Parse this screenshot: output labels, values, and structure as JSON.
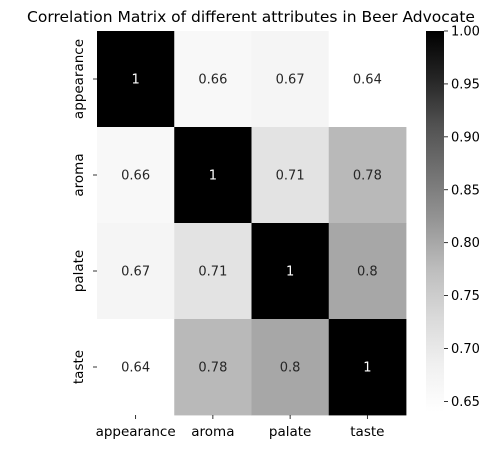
{
  "chart_data": {
    "type": "heatmap",
    "title": "Correlation Matrix of different attributes in Beer Advocate",
    "x_categories": [
      "appearance",
      "aroma",
      "palate",
      "taste"
    ],
    "y_categories": [
      "appearance",
      "aroma",
      "palate",
      "taste"
    ],
    "values": [
      [
        1,
        0.66,
        0.67,
        0.64
      ],
      [
        0.66,
        1,
        0.71,
        0.78
      ],
      [
        0.67,
        0.71,
        1,
        0.8
      ],
      [
        0.64,
        0.78,
        0.8,
        1
      ]
    ],
    "cell_labels": [
      [
        "1",
        "0.66",
        "0.67",
        "0.64"
      ],
      [
        "0.66",
        "1",
        "0.71",
        "0.78"
      ],
      [
        "0.67",
        "0.71",
        "1",
        "0.8"
      ],
      [
        "0.64",
        "0.78",
        "0.8",
        "1"
      ]
    ],
    "colormap": "Greys",
    "vmin": 0.64,
    "vmax": 1.0,
    "colorbar": {
      "ticks": [
        0.65,
        0.7,
        0.75,
        0.8,
        0.85,
        0.9,
        0.95,
        1.0
      ],
      "tick_labels": [
        "0.65",
        "0.70",
        "0.75",
        "0.80",
        "0.85",
        "0.90",
        "0.95",
        "1.00"
      ]
    }
  }
}
